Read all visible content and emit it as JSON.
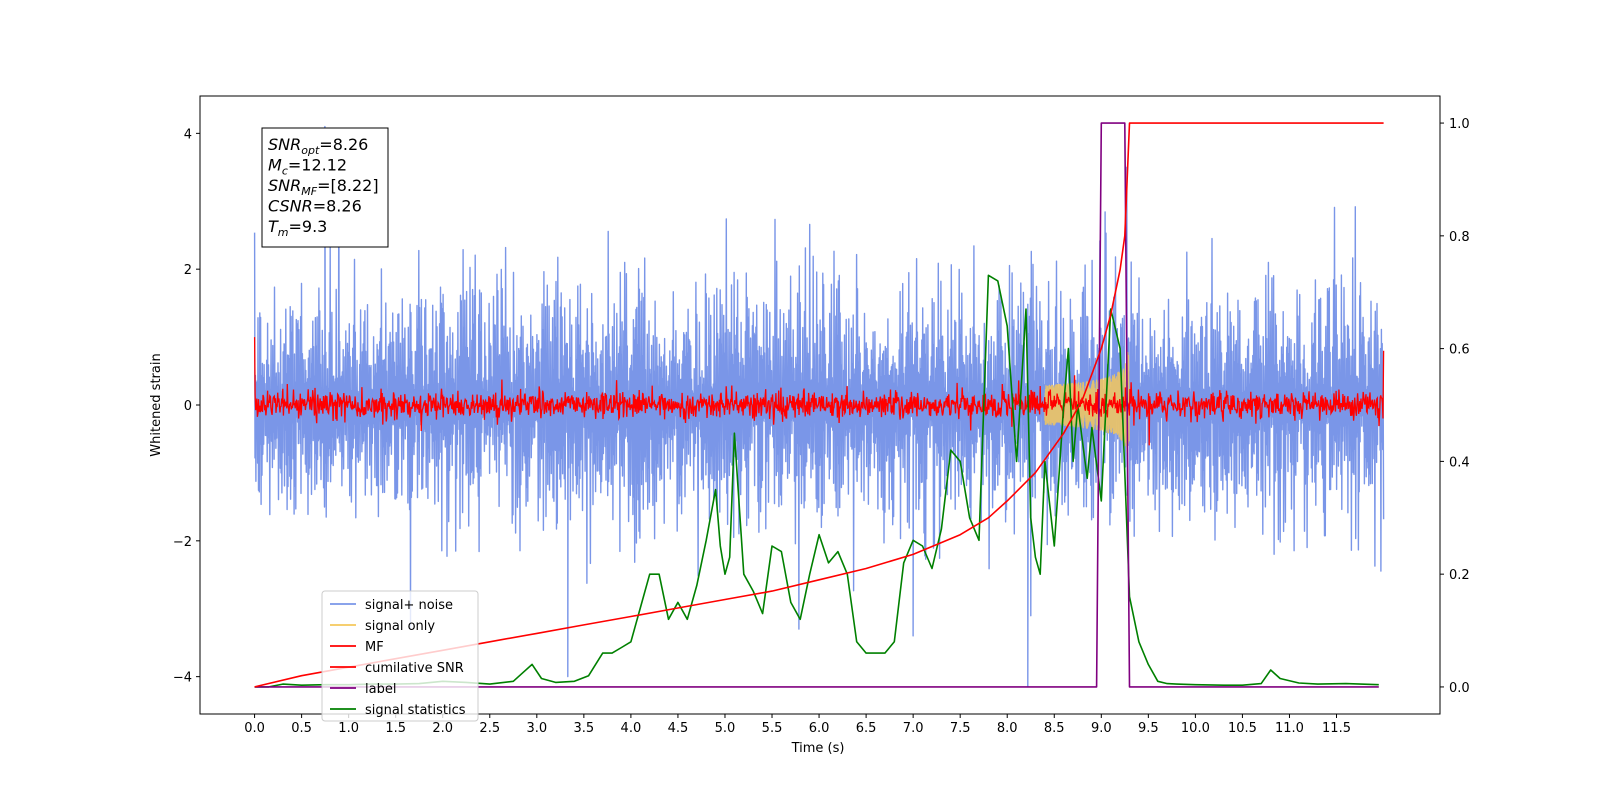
{
  "chart_data": {
    "type": "line",
    "xlabel": "Time (s)",
    "ylabel": "Whitened strain",
    "xlim": [
      -0.58,
      12.6
    ],
    "ylim": [
      -4.55,
      4.55
    ],
    "y2lim": [
      -0.048,
      1.048
    ],
    "x_ticks": [
      "0.0",
      "0.5",
      "1.0",
      "1.5",
      "2.0",
      "2.5",
      "3.0",
      "3.5",
      "4.0",
      "4.5",
      "5.0",
      "5.5",
      "6.0",
      "6.5",
      "7.0",
      "7.5",
      "8.0",
      "8.5",
      "9.0",
      "9.5",
      "10.0",
      "10.5",
      "11.0",
      "11.5"
    ],
    "y_ticks": [
      "4",
      "2",
      "0",
      "−2",
      "−4"
    ],
    "y2_ticks": [
      "1.0",
      "0.8",
      "0.6",
      "0.4",
      "0.2",
      "0.0"
    ],
    "grid": false,
    "legend_position": "lower-left",
    "legend": [
      {
        "label": "signal+ noise",
        "color": "#7a96e8"
      },
      {
        "label": "signal only",
        "color": "#f5c85c"
      },
      {
        "label": "MF",
        "color": "#ff0000"
      },
      {
        "label": "cumilative SNR",
        "color": "#ff0000"
      },
      {
        "label": "label",
        "color": "#800080"
      },
      {
        "label": "signal statistics",
        "color": "#008000"
      }
    ],
    "annotation": [
      {
        "sym": "SNR",
        "sub": "opt",
        "rest": "=8.26"
      },
      {
        "sym": "M",
        "sub": "c",
        "rest": "=12.12"
      },
      {
        "sym": "SNR",
        "sub": "MF",
        "rest": "=[8.22]"
      },
      {
        "sym": "CSNR",
        "sub": "",
        "rest": "=8.26"
      },
      {
        "sym": "T",
        "sub": "m",
        "rest": "=9.3"
      }
    ],
    "series": [
      {
        "name": "signal+ noise",
        "axis": "left",
        "color": "#7a96e8",
        "x_range": [
          0.0,
          12.0
        ],
        "noise_sigma": 1.0,
        "spikes": [
          [
            0.75,
            4.1
          ],
          [
            8.22,
            -4.15
          ],
          [
            9.27,
            3.5
          ],
          [
            3.33,
            -4.0
          ],
          [
            7.0,
            -3.4
          ]
        ]
      },
      {
        "name": "signal only",
        "axis": "left",
        "color": "#f5c85c",
        "chirp": {
          "t_start": 8.4,
          "t_merge": 9.3,
          "peak_amplitude": 1.2
        }
      },
      {
        "name": "MF",
        "axis": "left",
        "color": "#ff0000",
        "x_range": [
          0.0,
          12.0
        ],
        "noise_sigma": 0.1,
        "edge_values": [
          [
            0.0,
            1.0
          ],
          [
            12.0,
            0.8
          ]
        ]
      },
      {
        "name": "cumilative SNR",
        "axis": "right",
        "color": "#ff0000",
        "x": [
          0.0,
          0.5,
          1.0,
          1.5,
          2.0,
          2.5,
          3.0,
          3.5,
          4.0,
          4.5,
          5.0,
          5.5,
          6.0,
          6.5,
          7.0,
          7.5,
          7.8,
          8.0,
          8.3,
          8.6,
          8.8,
          9.0,
          9.1,
          9.2,
          9.25,
          9.3,
          12.0
        ],
        "y": [
          0.0,
          0.02,
          0.035,
          0.05,
          0.065,
          0.08,
          0.095,
          0.11,
          0.125,
          0.14,
          0.155,
          0.17,
          0.19,
          0.21,
          0.235,
          0.27,
          0.3,
          0.33,
          0.38,
          0.45,
          0.51,
          0.6,
          0.66,
          0.74,
          0.8,
          1.0,
          1.0
        ]
      },
      {
        "name": "label",
        "axis": "right",
        "color": "#800080",
        "x": [
          0.0,
          8.95,
          9.0,
          9.25,
          9.3,
          11.95
        ],
        "y": [
          0.0,
          0.0,
          1.0,
          1.0,
          0.0,
          0.0
        ]
      },
      {
        "name": "signal statistics",
        "axis": "right",
        "color": "#008000",
        "x": [
          0.0,
          0.15,
          0.3,
          0.5,
          0.75,
          1.0,
          1.25,
          1.5,
          1.75,
          2.0,
          2.25,
          2.5,
          2.75,
          2.85,
          2.95,
          3.05,
          3.2,
          3.4,
          3.55,
          3.7,
          3.8,
          3.9,
          4.0,
          4.1,
          4.2,
          4.3,
          4.4,
          4.5,
          4.6,
          4.7,
          4.8,
          4.9,
          4.95,
          5.0,
          5.05,
          5.1,
          5.2,
          5.3,
          5.4,
          5.5,
          5.6,
          5.7,
          5.8,
          5.9,
          6.0,
          6.1,
          6.2,
          6.3,
          6.4,
          6.5,
          6.6,
          6.7,
          6.8,
          6.9,
          7.0,
          7.1,
          7.2,
          7.3,
          7.4,
          7.5,
          7.6,
          7.7,
          7.8,
          7.9,
          8.0,
          8.1,
          8.2,
          8.25,
          8.3,
          8.35,
          8.4,
          8.5,
          8.6,
          8.65,
          8.7,
          8.75,
          8.85,
          8.9,
          9.0,
          9.1,
          9.2,
          9.3,
          9.4,
          9.5,
          9.6,
          9.7,
          9.8,
          10.0,
          10.3,
          10.5,
          10.7,
          10.8,
          10.9,
          11.1,
          11.3,
          11.6,
          11.95
        ],
        "y": [
          0.0,
          0.0,
          0.005,
          0.003,
          0.004,
          0.004,
          0.005,
          0.005,
          0.006,
          0.01,
          0.008,
          0.005,
          0.01,
          0.025,
          0.04,
          0.015,
          0.008,
          0.01,
          0.02,
          0.06,
          0.06,
          0.07,
          0.08,
          0.14,
          0.2,
          0.2,
          0.12,
          0.15,
          0.12,
          0.18,
          0.26,
          0.35,
          0.25,
          0.2,
          0.23,
          0.45,
          0.2,
          0.17,
          0.13,
          0.25,
          0.24,
          0.15,
          0.12,
          0.2,
          0.27,
          0.22,
          0.24,
          0.2,
          0.08,
          0.06,
          0.06,
          0.06,
          0.08,
          0.22,
          0.26,
          0.25,
          0.21,
          0.28,
          0.42,
          0.4,
          0.3,
          0.26,
          0.73,
          0.72,
          0.64,
          0.4,
          0.67,
          0.3,
          0.23,
          0.2,
          0.4,
          0.25,
          0.5,
          0.6,
          0.4,
          0.5,
          0.37,
          0.46,
          0.33,
          0.67,
          0.6,
          0.16,
          0.08,
          0.04,
          0.01,
          0.006,
          0.005,
          0.004,
          0.003,
          0.003,
          0.006,
          0.03,
          0.015,
          0.007,
          0.005,
          0.006,
          0.004
        ]
      }
    ]
  }
}
